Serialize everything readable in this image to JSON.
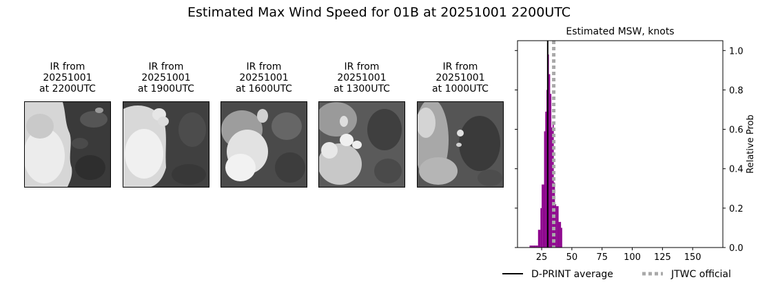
{
  "figure": {
    "title": "Estimated Max Wind Speed for 01B at 20251001 2200UTC"
  },
  "ir_panels": [
    {
      "caption_lines": [
        "IR from",
        "20251001",
        "at 2200UTC"
      ]
    },
    {
      "caption_lines": [
        "IR from",
        "20251001",
        "at 1900UTC"
      ]
    },
    {
      "caption_lines": [
        "IR from",
        "20251001",
        "at 1600UTC"
      ]
    },
    {
      "caption_lines": [
        "IR from",
        "20251001",
        "at 1300UTC"
      ]
    },
    {
      "caption_lines": [
        "IR from",
        "20251001",
        "at 1000UTC"
      ]
    }
  ],
  "chart_data": {
    "type": "bar",
    "title": "Estimated MSW, knots",
    "xlabel": "",
    "ylabel": "Relative Prob",
    "xlim": [
      5,
      175
    ],
    "ylim": [
      0,
      1.05
    ],
    "xticks": [
      25,
      50,
      75,
      100,
      125,
      150
    ],
    "yticks": [
      0.0,
      0.2,
      0.4,
      0.6,
      0.8,
      1.0
    ],
    "ytick_labels": [
      "0.0",
      "0.2",
      "0.4",
      "0.6",
      "0.8",
      "1.0"
    ],
    "bar_color": "#8b008b",
    "bin_width": 1,
    "bins": [
      {
        "x": 15,
        "prob": 0.01
      },
      {
        "x": 16,
        "prob": 0.01
      },
      {
        "x": 17,
        "prob": 0.01
      },
      {
        "x": 18,
        "prob": 0.01
      },
      {
        "x": 19,
        "prob": 0.01
      },
      {
        "x": 20,
        "prob": 0.01
      },
      {
        "x": 21,
        "prob": 0.01
      },
      {
        "x": 22,
        "prob": 0.09
      },
      {
        "x": 23,
        "prob": 0.09
      },
      {
        "x": 24,
        "prob": 0.2
      },
      {
        "x": 25,
        "prob": 0.32
      },
      {
        "x": 26,
        "prob": 0.32
      },
      {
        "x": 27,
        "prob": 0.59
      },
      {
        "x": 28,
        "prob": 0.69
      },
      {
        "x": 29,
        "prob": 0.8
      },
      {
        "x": 30,
        "prob": 0.98
      },
      {
        "x": 31,
        "prob": 0.88
      },
      {
        "x": 32,
        "prob": 0.78
      },
      {
        "x": 33,
        "prob": 0.61
      },
      {
        "x": 34,
        "prob": 0.64
      },
      {
        "x": 35,
        "prob": 0.33
      },
      {
        "x": 36,
        "prob": 0.22
      },
      {
        "x": 37,
        "prob": 0.21
      },
      {
        "x": 38,
        "prob": 0.21
      },
      {
        "x": 39,
        "prob": 0.13
      },
      {
        "x": 40,
        "prob": 0.13
      },
      {
        "x": 41,
        "prob": 0.1
      }
    ],
    "dprint_average": 30,
    "jtwc_official": 35,
    "legend": {
      "position": "bottom",
      "entries": [
        {
          "label": "D-PRINT average",
          "style": "solid",
          "color": "#000000"
        },
        {
          "label": "JTWC official",
          "style": "dotted",
          "color": "#a9a9a9"
        }
      ]
    }
  }
}
